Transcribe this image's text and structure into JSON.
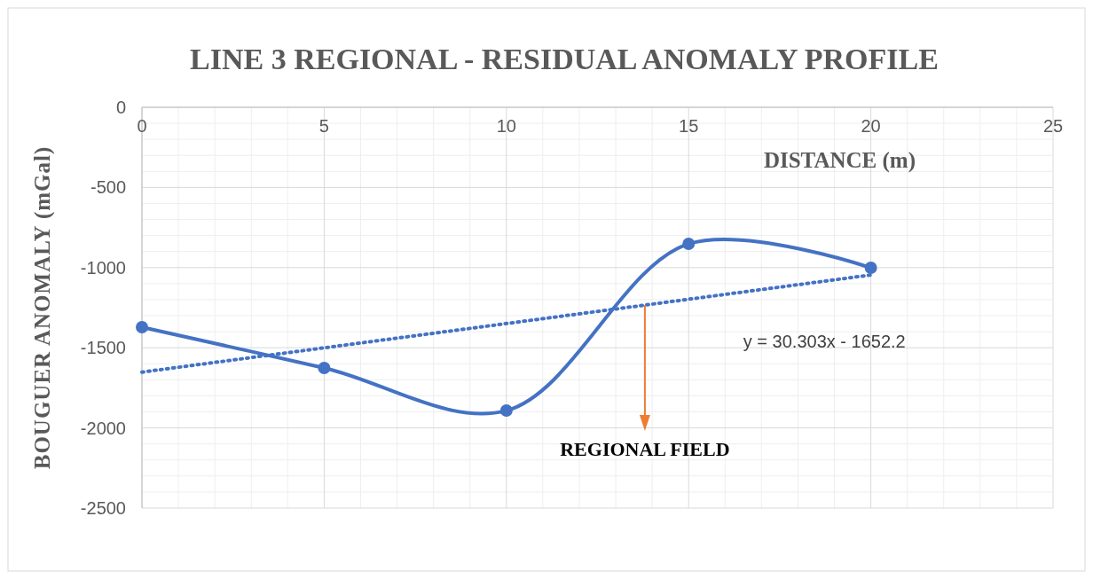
{
  "chart_data": {
    "type": "line",
    "title": "LINE 3 REGIONAL - RESIDUAL  ANOMALY PROFILE",
    "xlabel": "DISTANCE (m)",
    "ylabel": "BOUGUER ANOMALY (mGal)",
    "x": [
      0,
      5,
      10,
      15,
      20
    ],
    "series": [
      {
        "color": "#4472c4",
        "values": [
          -1372,
          -1626,
          -1892,
          -852,
          -1001
        ],
        "marker": "circle",
        "line_style": "solid"
      },
      {
        "type": "line",
        "color": "#4472c4",
        "x": [
          0,
          20
        ],
        "values": [
          -1652,
          -1046
        ],
        "marker": "none",
        "line_style": "dotted"
      }
    ],
    "xlim": [
      0,
      25
    ],
    "xticks": [
      0,
      5,
      10,
      15,
      20,
      25
    ],
    "ylim": [
      -2500,
      0
    ],
    "yticks": [
      -2500,
      -2000,
      -1500,
      -1000,
      -500,
      0
    ],
    "grid": true,
    "annotations": [
      "y = 30.303x - 1652.2",
      {
        "text": "REGIONAL FIELD",
        "x": 13.8,
        "y": -1234
      }
    ]
  }
}
